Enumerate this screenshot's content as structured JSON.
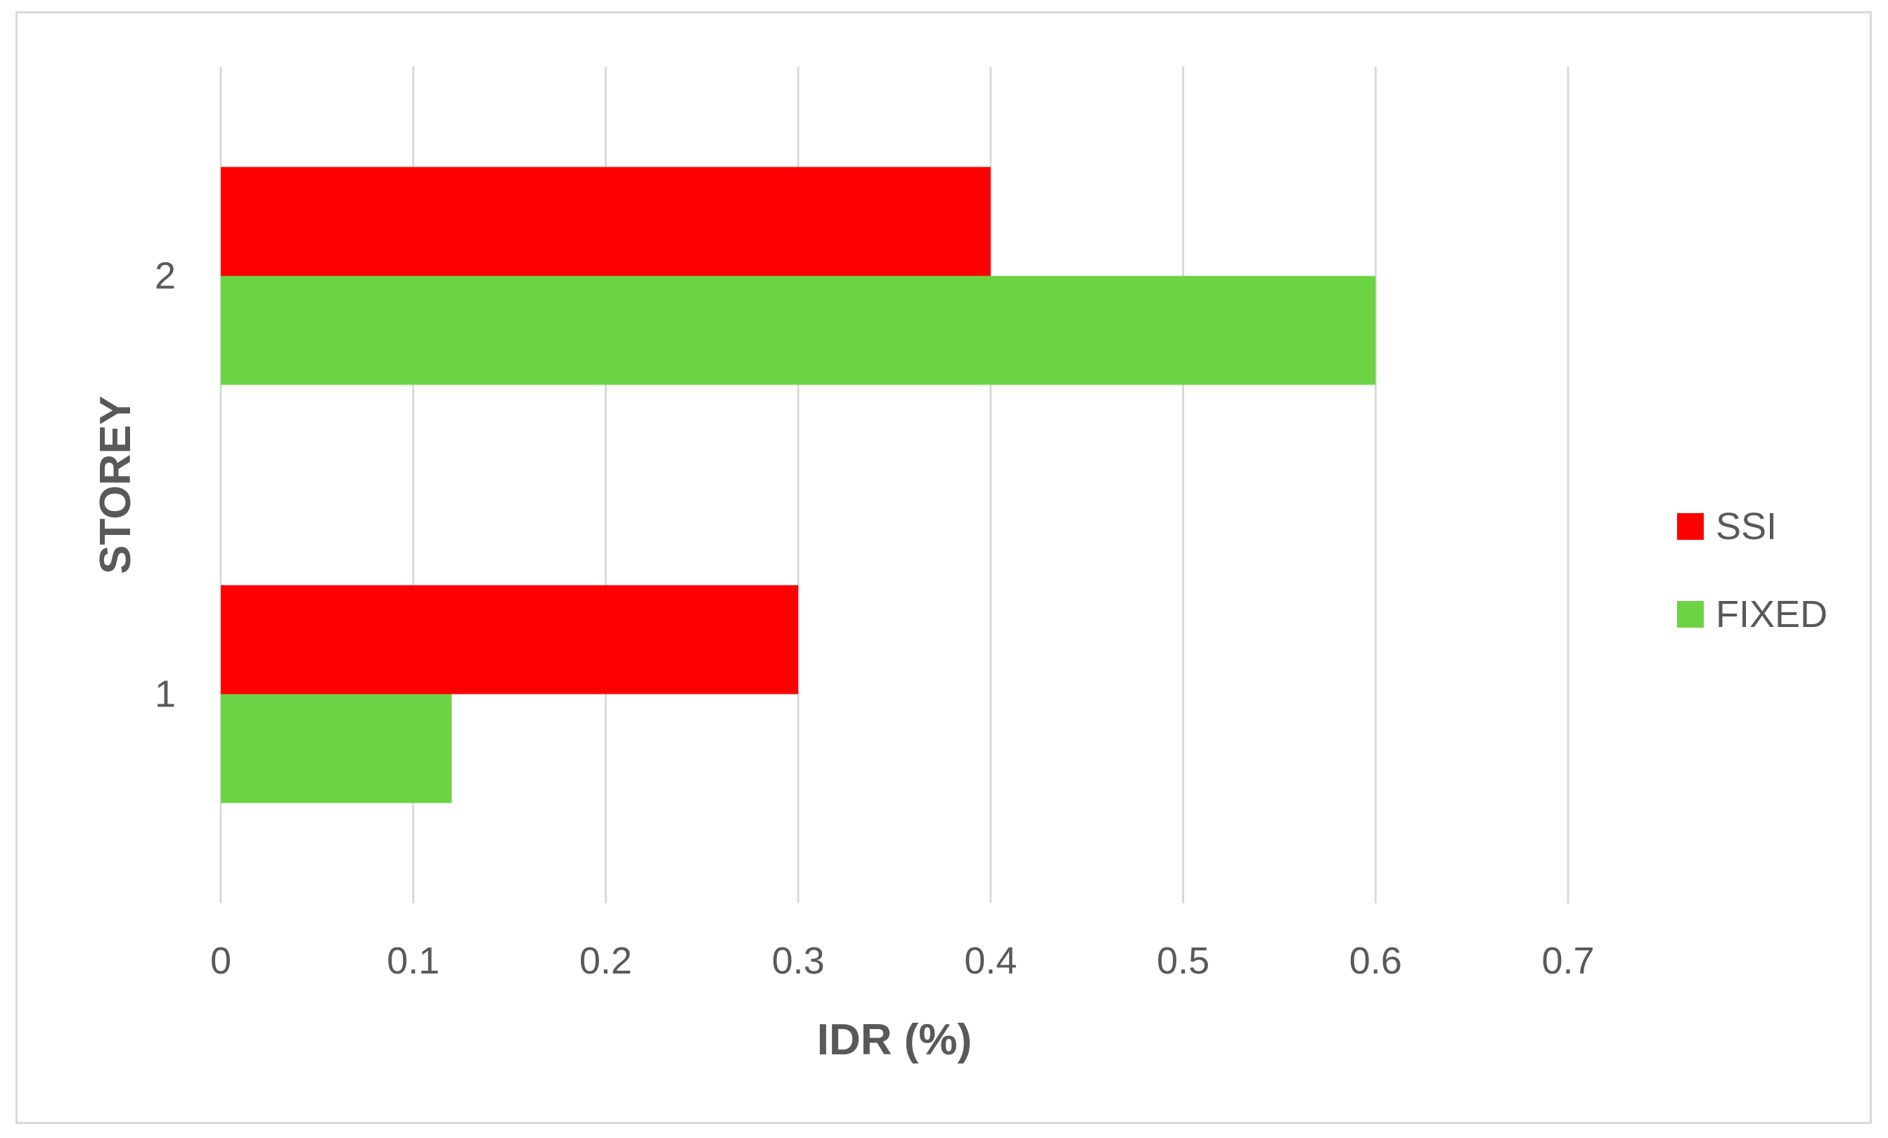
{
  "chart_data": {
    "type": "bar",
    "orientation": "horizontal",
    "categories": [
      "1",
      "2"
    ],
    "series": [
      {
        "name": "SSI",
        "values": [
          0.3,
          0.4
        ],
        "color": "#ff0000"
      },
      {
        "name": "FIXED",
        "values": [
          0.12,
          0.6
        ],
        "color": "#6cd444"
      }
    ],
    "xlabel": "IDR (%)",
    "ylabel": "STOREY",
    "xlim": [
      0,
      0.7
    ],
    "xticks": [
      "0",
      "0.1",
      "0.2",
      "0.3",
      "0.4",
      "0.5",
      "0.6",
      "0.7"
    ],
    "grid": "vertical",
    "legend_position": "right"
  }
}
